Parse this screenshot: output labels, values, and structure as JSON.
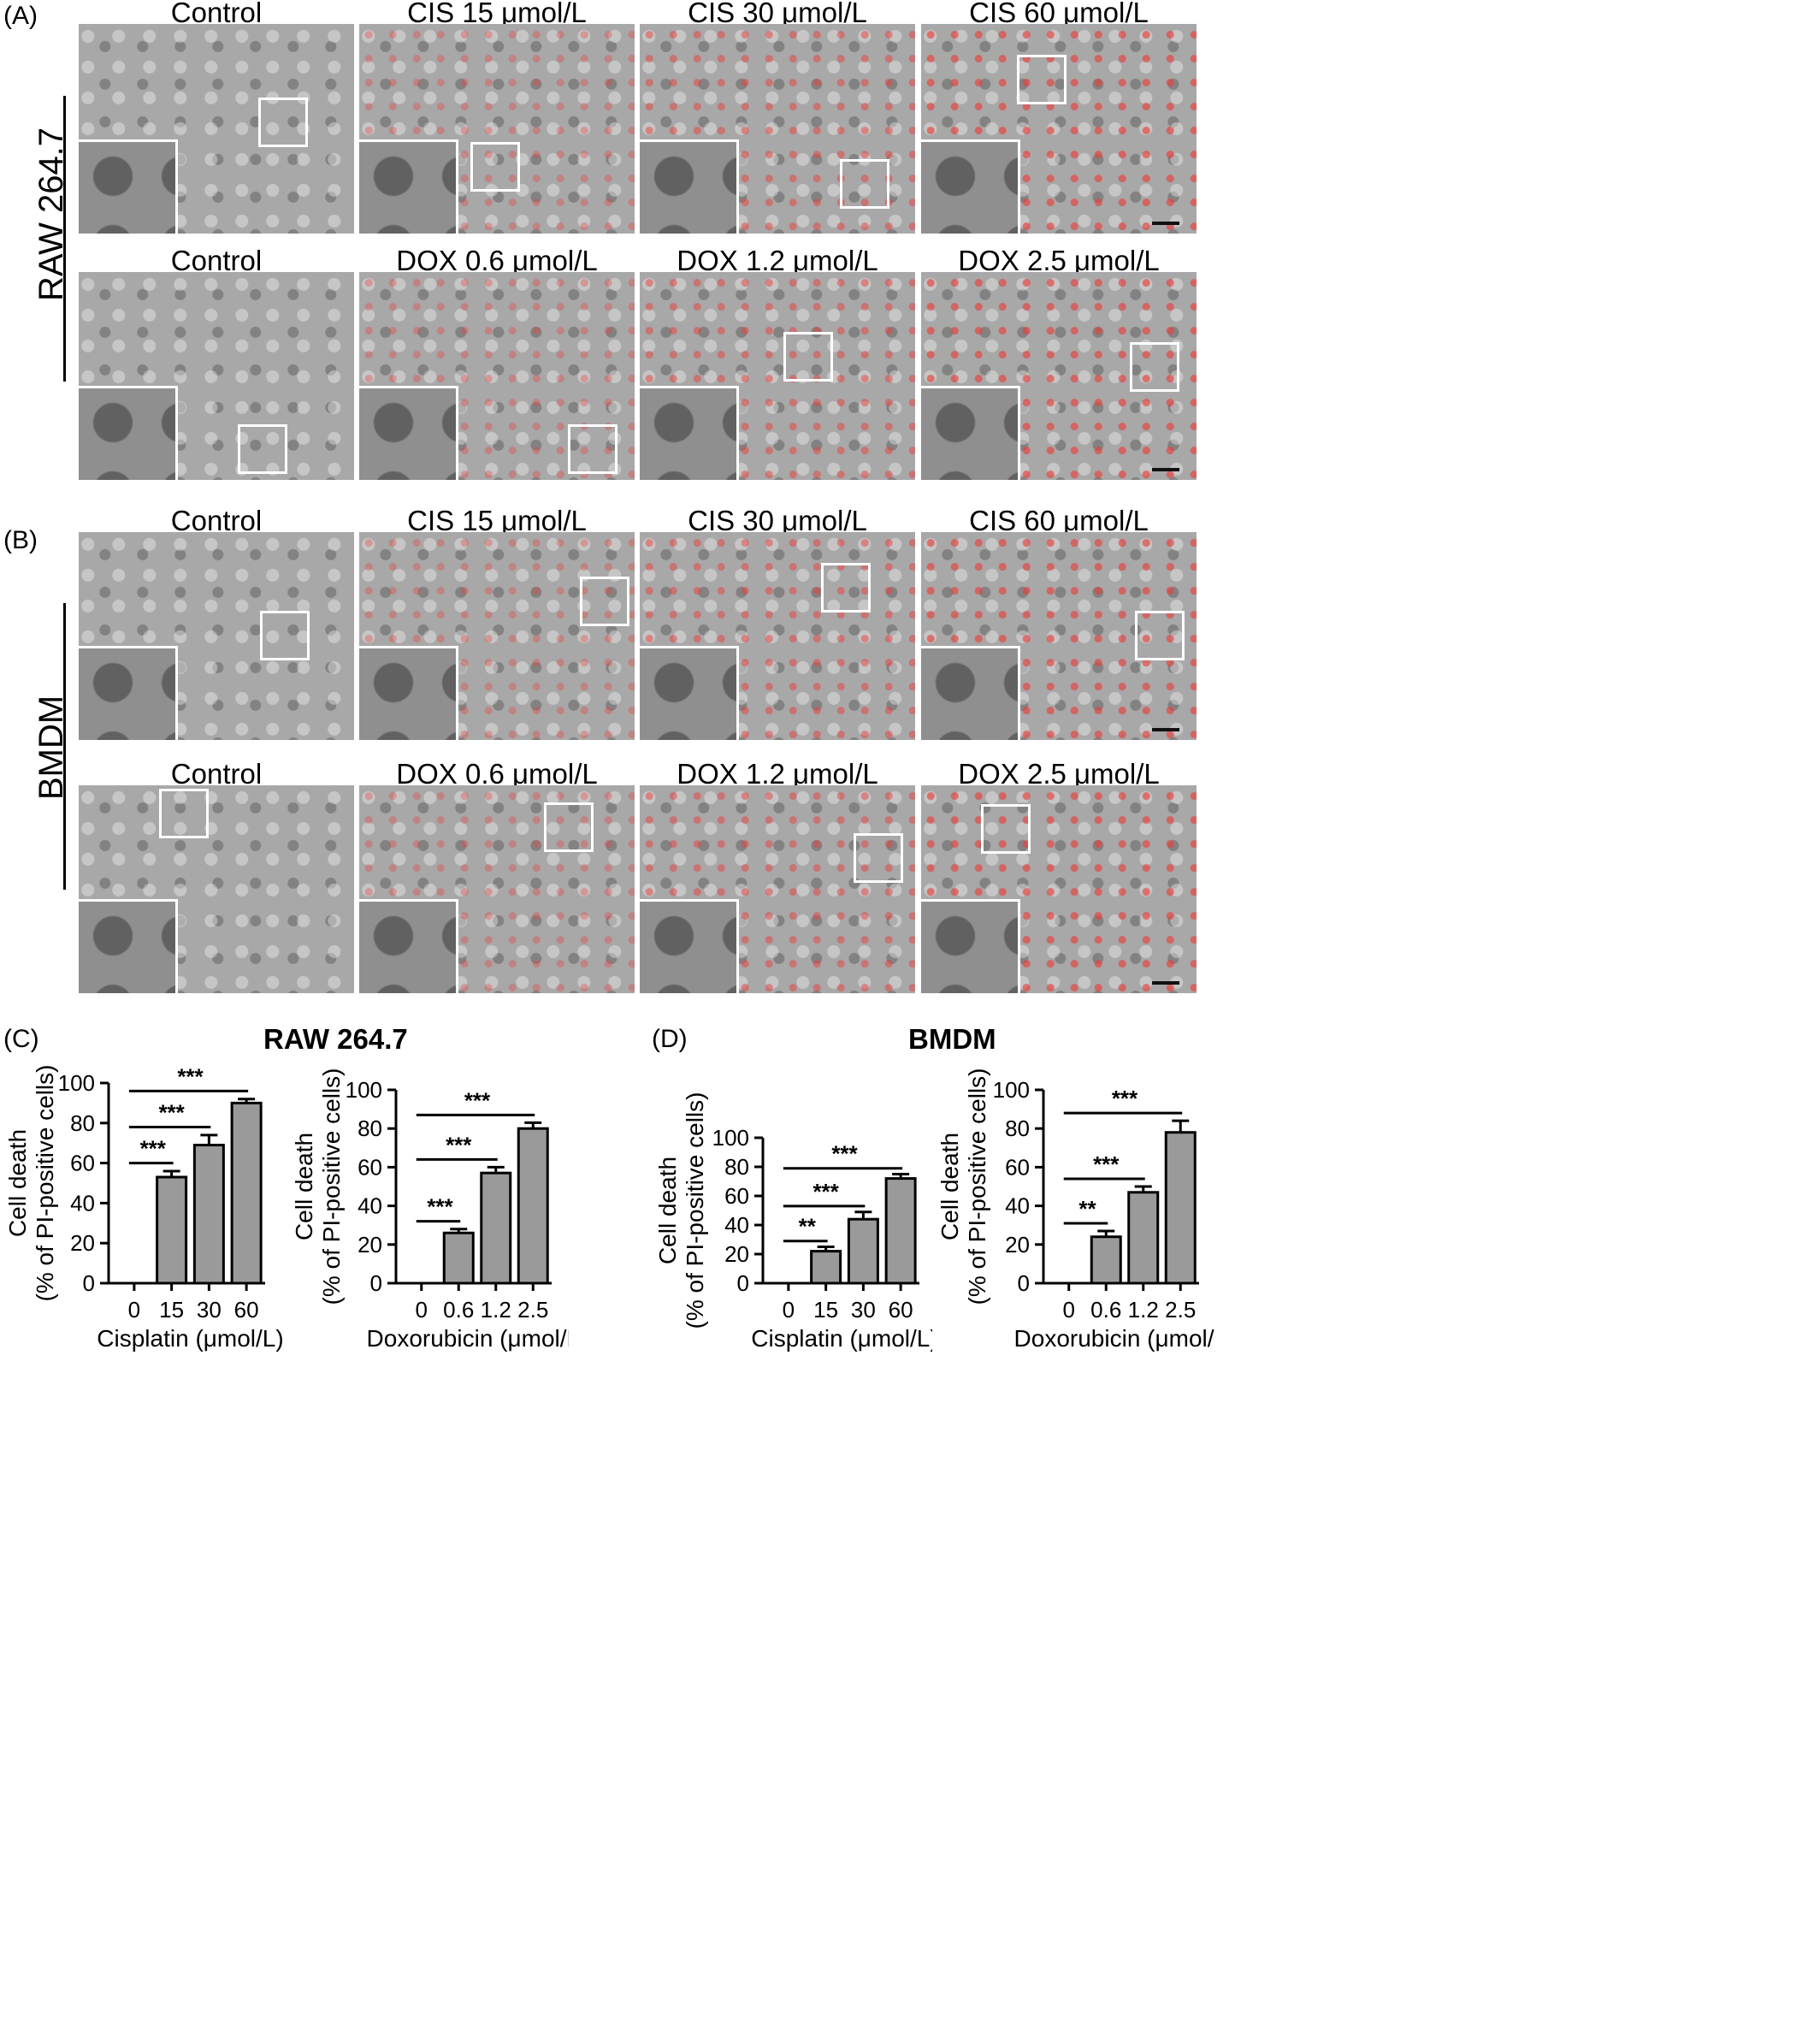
{
  "panels": {
    "A": {
      "letter": "(A)",
      "cell_line": "RAW 264.7",
      "rows": [
        {
          "titles": [
            "Control",
            "CIS 15 μmol/L",
            "CIS 30 μmol/L",
            "CIS 60 μmol/L"
          ]
        },
        {
          "titles": [
            "Control",
            "DOX 0.6 μmol/L",
            "DOX 1.2 μmol/L",
            "DOX 2.5 μmol/L"
          ]
        }
      ]
    },
    "B": {
      "letter": "(B)",
      "cell_line": "BMDM",
      "rows": [
        {
          "titles": [
            "Control",
            "CIS 15 μmol/L",
            "CIS 30 μmol/L",
            "CIS 60 μmol/L"
          ]
        },
        {
          "titles": [
            "Control",
            "DOX 0.6 μmol/L",
            "DOX 1.2 μmol/L",
            "DOX 2.5 μmol/L"
          ]
        }
      ]
    },
    "C": {
      "letter": "(C)",
      "title": "RAW 264.7"
    },
    "D": {
      "letter": "(D)",
      "title": "BMDM"
    }
  },
  "colors": {
    "bar": "#9a9a9a",
    "pi_signal": "#e8403c"
  },
  "chart_data": [
    {
      "type": "bar",
      "panel": "C",
      "categories": [
        "0",
        "15",
        "30",
        "60"
      ],
      "values": [
        0,
        53,
        69,
        90
      ],
      "errors": [
        0,
        3,
        5,
        2
      ],
      "xlabel": "Cisplatin (μmol/L)",
      "ylabel_line1": "Cell death",
      "ylabel_line2": "(% of PI-positive cells)",
      "ylim": [
        0,
        100
      ],
      "yticks": [
        0,
        20,
        40,
        60,
        80,
        100
      ],
      "significance": [
        {
          "from": 0,
          "to": 1,
          "label": "***"
        },
        {
          "from": 0,
          "to": 2,
          "label": "***"
        },
        {
          "from": 0,
          "to": 3,
          "label": "***"
        }
      ]
    },
    {
      "type": "bar",
      "panel": "C",
      "categories": [
        "0",
        "0.6",
        "1.2",
        "2.5"
      ],
      "values": [
        0,
        26,
        57,
        80
      ],
      "errors": [
        0,
        2,
        3,
        3
      ],
      "xlabel": "Doxorubicin (μmol/L)",
      "ylabel_line1": "Cell death",
      "ylabel_line2": "(% of PI-positive cells)",
      "ylim": [
        0,
        100
      ],
      "yticks": [
        0,
        20,
        40,
        60,
        80,
        100
      ],
      "significance": [
        {
          "from": 0,
          "to": 1,
          "label": "***"
        },
        {
          "from": 0,
          "to": 2,
          "label": "***"
        },
        {
          "from": 0,
          "to": 3,
          "label": "***"
        }
      ]
    },
    {
      "type": "bar",
      "panel": "D",
      "categories": [
        "0",
        "15",
        "30",
        "60"
      ],
      "values": [
        0,
        22,
        44,
        72
      ],
      "errors": [
        0,
        3,
        5,
        3
      ],
      "xlabel": "Cisplatin (μmol/L)",
      "ylabel_line1": "Cell death",
      "ylabel_line2": "(% of PI-positive cells)",
      "ylim": [
        0,
        100
      ],
      "yticks": [
        0,
        20,
        40,
        60,
        80,
        100
      ],
      "significance": [
        {
          "from": 0,
          "to": 1,
          "label": "**"
        },
        {
          "from": 0,
          "to": 2,
          "label": "***"
        },
        {
          "from": 0,
          "to": 3,
          "label": "***"
        }
      ]
    },
    {
      "type": "bar",
      "panel": "D",
      "categories": [
        "0",
        "0.6",
        "1.2",
        "2.5"
      ],
      "values": [
        0,
        24,
        47,
        78
      ],
      "errors": [
        0,
        3,
        3,
        6
      ],
      "xlabel": "Doxorubicin (μmol/L)",
      "ylabel_line1": "Cell death",
      "ylabel_line2": "(% of PI-positive cells)",
      "ylim": [
        0,
        100
      ],
      "yticks": [
        0,
        20,
        40,
        60,
        80,
        100
      ],
      "significance": [
        {
          "from": 0,
          "to": 1,
          "label": "**"
        },
        {
          "from": 0,
          "to": 2,
          "label": "***"
        },
        {
          "from": 0,
          "to": 3,
          "label": "***"
        }
      ]
    }
  ]
}
